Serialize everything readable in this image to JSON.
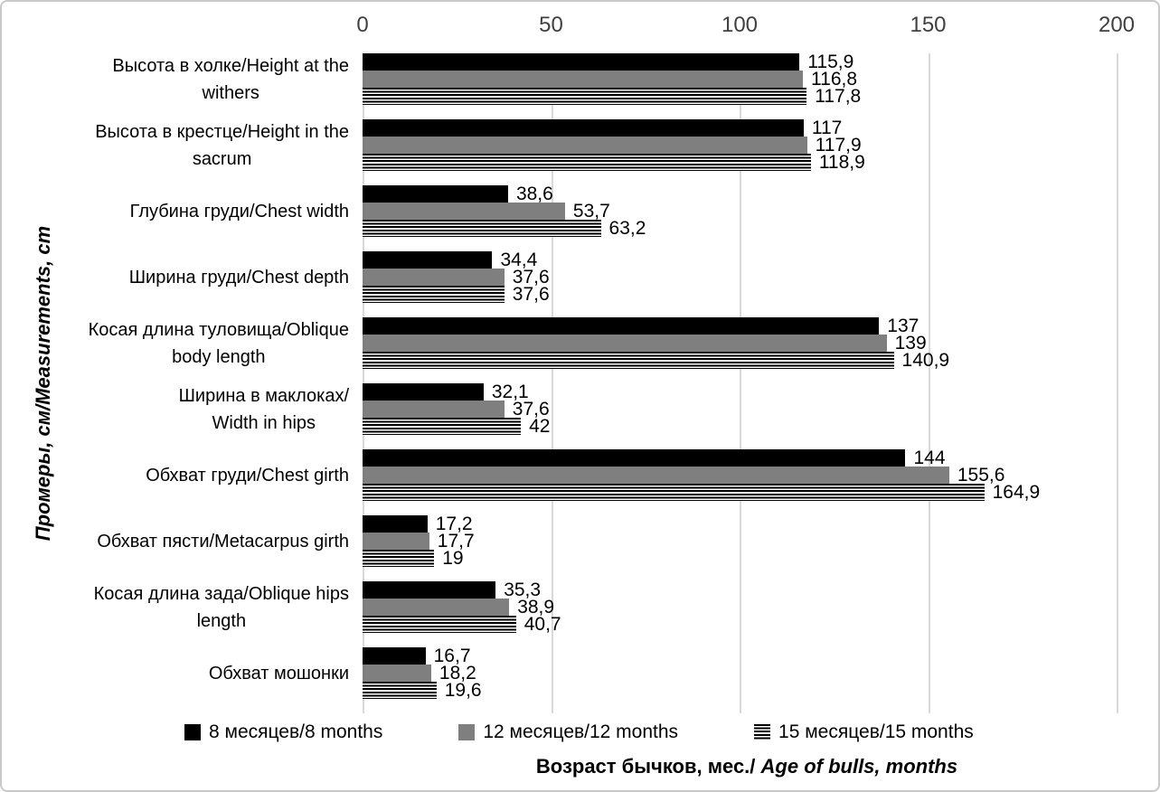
{
  "figure": {
    "background": "#ffffff",
    "border_color": "#c9c9c9"
  },
  "axes": {
    "x_tick_labels": [
      "0",
      "50",
      "100",
      "150",
      "200"
    ],
    "x_tick_values": [
      0,
      50,
      100,
      150,
      200
    ],
    "tick_color": "#404040",
    "gridline_color": "#d9d9d9",
    "x_title_main": "Возраст бычков,  мес./",
    "x_title_italic": " Age of bulls, months",
    "y_title": "Промеры, см/Measurements,  cm"
  },
  "colors": {
    "series_8_months": "#000000",
    "series_12_months": "#7f7f7f",
    "series_15_months_stripe": "#000000"
  },
  "chart_data": {
    "type": "bar",
    "orientation": "horizontal",
    "title": "",
    "xlabel": "Возраст бычков, мес./ Age of bulls, months",
    "ylabel": "Промеры, см/Measurements, cm",
    "xlim": [
      0,
      200
    ],
    "x_ticks": [
      0,
      50,
      100,
      150,
      200
    ],
    "grid": true,
    "legend_position": "bottom",
    "decimal_separator": ",",
    "categories": [
      "Высота в холке/Height at the\nwithers",
      "Высота в крестце/Height in the\nsacrum",
      "Глубина груди/Chest width",
      "Ширина груди/Chest  depth",
      "Косая длина туловища/Oblique\nbody length",
      "Ширина в маклоках/\nWidth in hips",
      "Обхват груди/Chest girth",
      "Обхват пясти/Metacarpus girth",
      "Косая длина зада/Oblique hips\nlength",
      "Обхват мошонки"
    ],
    "series": [
      {
        "name": "8 месяцев/8 months",
        "style": "black",
        "values": [
          115.9,
          117,
          38.6,
          34.4,
          137,
          32.1,
          144,
          17.2,
          35.3,
          16.7
        ]
      },
      {
        "name": "12 месяцев/12 months",
        "style": "gray",
        "values": [
          116.8,
          117.9,
          53.7,
          37.6,
          139,
          37.6,
          155.6,
          17.7,
          38.9,
          18.2
        ]
      },
      {
        "name": "15 месяцев/15 months",
        "style": "stripe",
        "values": [
          117.8,
          118.9,
          63.2,
          37.6,
          140.9,
          42,
          164.9,
          19,
          40.7,
          19.6
        ]
      }
    ]
  }
}
